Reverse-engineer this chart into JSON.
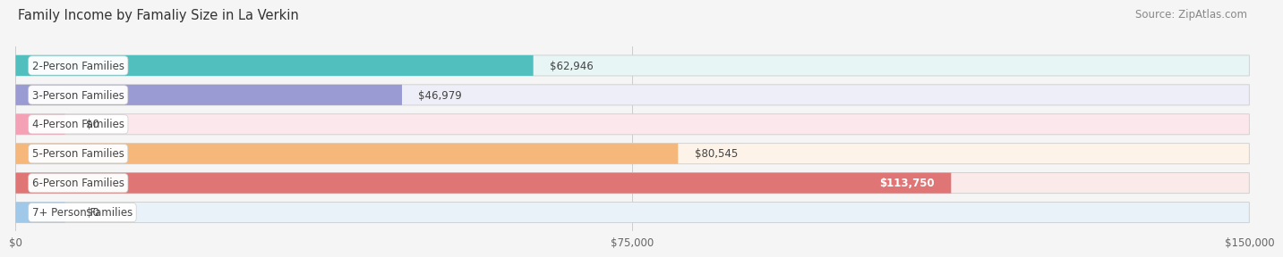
{
  "title": "Family Income by Famaliy Size in La Verkin",
  "source": "Source: ZipAtlas.com",
  "categories": [
    "2-Person Families",
    "3-Person Families",
    "4-Person Families",
    "5-Person Families",
    "6-Person Families",
    "7+ Person Families"
  ],
  "values": [
    62946,
    46979,
    0,
    80545,
    113750,
    0
  ],
  "bar_colors": [
    "#52bfbf",
    "#9b9bd4",
    "#f4a0b5",
    "#f5b87a",
    "#e07575",
    "#a0c8e8"
  ],
  "bg_colors": [
    "#e8f5f5",
    "#eeeef8",
    "#fce8ec",
    "#fdf3e8",
    "#faeaea",
    "#e8f2f8"
  ],
  "xlim": [
    0,
    150000
  ],
  "xticks": [
    0,
    75000,
    150000
  ],
  "xtick_labels": [
    "$0",
    "$75,000",
    "$150,000"
  ],
  "value_labels": [
    "$62,946",
    "$46,979",
    "$0",
    "$80,545",
    "$113,750",
    "$0"
  ],
  "title_fontsize": 10.5,
  "source_fontsize": 8.5,
  "label_fontsize": 8.5,
  "value_fontsize": 8.5,
  "bar_height": 0.7,
  "fig_bg": "#f5f5f5"
}
